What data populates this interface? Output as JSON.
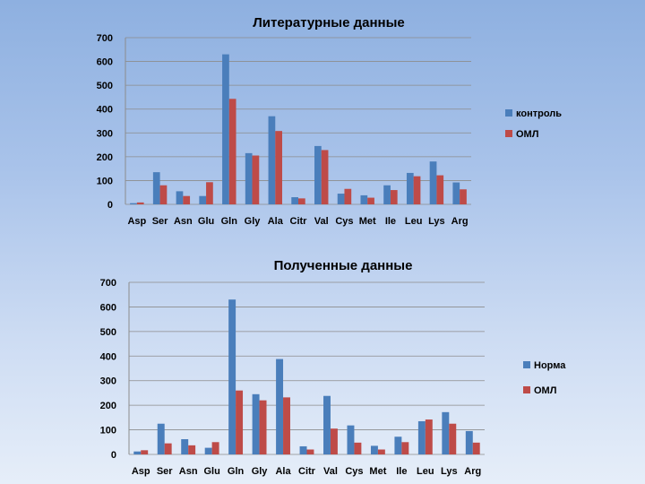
{
  "chart_data": [
    {
      "type": "bar",
      "title": "Литературные данные",
      "categories": [
        "Asp",
        "Ser",
        "Asn",
        "Glu",
        "Gln",
        "Gly",
        "Ala",
        "Citr",
        "Val",
        "Cys",
        "Met",
        "Ile",
        "Leu",
        "Lys",
        "Arg"
      ],
      "series": [
        {
          "name": "контроль",
          "color": "#4a7ebb",
          "values": [
            5,
            135,
            55,
            35,
            630,
            215,
            370,
            30,
            245,
            45,
            38,
            80,
            132,
            180,
            92
          ]
        },
        {
          "name": "ОМЛ",
          "color": "#be4b48",
          "values": [
            8,
            80,
            35,
            93,
            443,
            205,
            308,
            25,
            228,
            65,
            28,
            60,
            118,
            122,
            63
          ]
        }
      ],
      "yticks": [
        0,
        100,
        200,
        300,
        400,
        500,
        600,
        700
      ],
      "ylim": [
        0,
        700
      ],
      "grid": true,
      "legend": "right"
    },
    {
      "type": "bar",
      "title": "Полученные данные",
      "categories": [
        "Asp",
        "Ser",
        "Asn",
        "Glu",
        "Gln",
        "Gly",
        "Ala",
        "Citr",
        "Val",
        "Cys",
        "Met",
        "Ile",
        "Leu",
        "Lys",
        "Arg"
      ],
      "series": [
        {
          "name": "Норма",
          "color": "#4a7ebb",
          "values": [
            12,
            125,
            62,
            27,
            630,
            245,
            388,
            33,
            238,
            118,
            35,
            72,
            135,
            172,
            95
          ]
        },
        {
          "name": "ОМЛ",
          "color": "#be4b48",
          "values": [
            17,
            45,
            37,
            50,
            260,
            220,
            232,
            20,
            105,
            48,
            20,
            50,
            142,
            125,
            48
          ]
        }
      ],
      "yticks": [
        0,
        100,
        200,
        300,
        400,
        500,
        600,
        700
      ],
      "ylim": [
        0,
        700
      ],
      "grid": true,
      "legend": "right"
    }
  ]
}
